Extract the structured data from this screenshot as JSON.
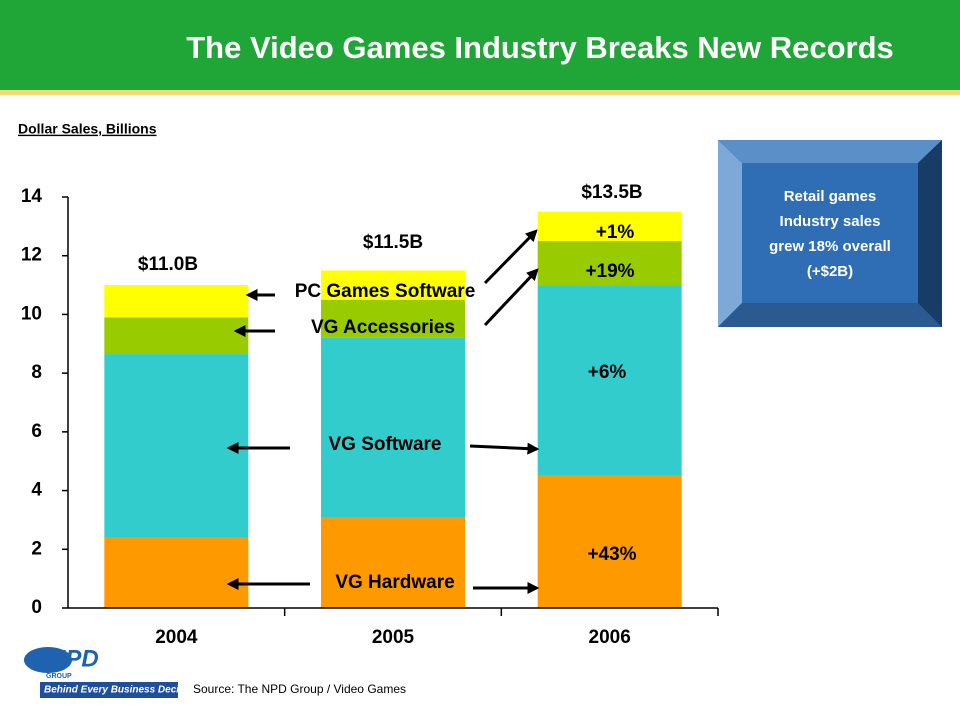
{
  "header": {
    "title": "The Video Games Industry Breaks New Records"
  },
  "chart_data": {
    "type": "stacked_bar",
    "y_label": "Dollar Sales, Billions",
    "categories": [
      "2004",
      "2005",
      "2006"
    ],
    "series": [
      {
        "name": "VG Hardware",
        "color": "#ff9900",
        "values": [
          2.4,
          3.1,
          4.5
        ]
      },
      {
        "name": "VG Software",
        "color": "#33cccc",
        "values": [
          6.25,
          6.1,
          6.5
        ]
      },
      {
        "name": "VG Accessories",
        "color": "#99cc00",
        "values": [
          1.25,
          1.3,
          1.5
        ]
      },
      {
        "name": "PC Games Software",
        "color": "#ffff00",
        "values": [
          1.1,
          1.0,
          1.0
        ]
      }
    ],
    "ylim": [
      0,
      14
    ],
    "yticks": [
      0,
      2,
      4,
      6,
      8,
      10,
      12,
      14
    ],
    "annotations": [
      "$11.0B",
      "$11.5B",
      "$13.5B",
      "+1%",
      "+19%",
      "+6%",
      "+43%"
    ]
  },
  "callout": {
    "lines": [
      "Retail games",
      "Industry sales",
      "grew 18% overall",
      "(+$2B)"
    ]
  },
  "source": "Source:  The NPD Group / Video Games",
  "logo": {
    "name": "NPD",
    "sub": "GROUP",
    "tagline": "Behind Every Business Decision"
  }
}
